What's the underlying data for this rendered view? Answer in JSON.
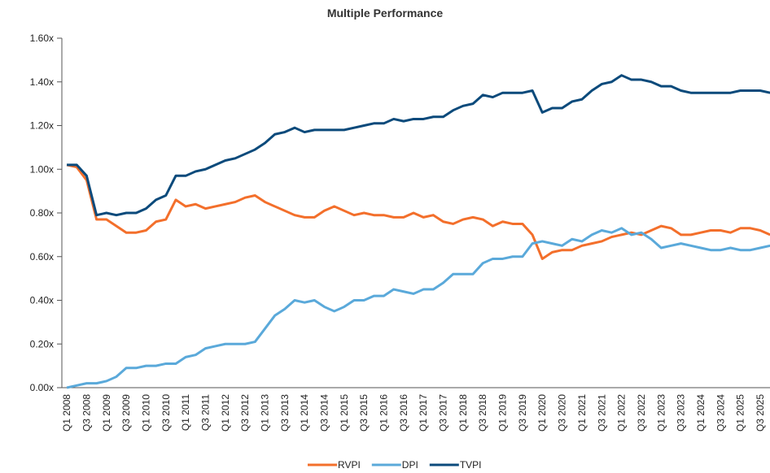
{
  "chart_data": {
    "type": "line",
    "title": "Multiple Performance",
    "categories": [
      "Q1 2008",
      null,
      "Q3 2008",
      null,
      "Q1 2009",
      null,
      "Q3 2009",
      null,
      "Q1 2010",
      null,
      "Q3 2010",
      null,
      "Q1 2011",
      null,
      "Q3 2011",
      null,
      "Q1 2012",
      null,
      "Q3 2012",
      null,
      "Q1 2013",
      null,
      "Q3 2013",
      null,
      "Q1 2014",
      null,
      "Q3 2014",
      null,
      "Q1 2015",
      null,
      "Q3 2015",
      null,
      "Q1 2016",
      null,
      "Q3 2016",
      null,
      "Q1 2017",
      null,
      "Q3 2017",
      null,
      "Q1 2018",
      null,
      "Q3 2018",
      null,
      "Q1 2019",
      null,
      "Q3 2019",
      null,
      "Q1 2020",
      null,
      "Q3 2020",
      null,
      "Q1 2021",
      null,
      "Q3 2021",
      null,
      "Q1 2022",
      null,
      "Q3 2022",
      null,
      "Q1 2023",
      null,
      "Q3 2023",
      null,
      "Q1 2024",
      null,
      "Q3 2024",
      null,
      "Q1 2025",
      null,
      "Q3 2025",
      null
    ],
    "series": [
      {
        "name": "RVPI",
        "color": "#f36f2b",
        "values": [
          1.02,
          1.01,
          0.95,
          0.77,
          0.77,
          0.74,
          0.71,
          0.71,
          0.72,
          0.76,
          0.77,
          0.86,
          0.83,
          0.84,
          0.82,
          0.83,
          0.84,
          0.85,
          0.87,
          0.88,
          0.85,
          0.83,
          0.81,
          0.79,
          0.78,
          0.78,
          0.81,
          0.83,
          0.81,
          0.79,
          0.8,
          0.79,
          0.79,
          0.78,
          0.78,
          0.8,
          0.78,
          0.79,
          0.76,
          0.75,
          0.77,
          0.78,
          0.77,
          0.74,
          0.76,
          0.75,
          0.75,
          0.7,
          0.59,
          0.62,
          0.63,
          0.63,
          0.65,
          0.66,
          0.67,
          0.69,
          0.7,
          0.71,
          0.7,
          0.72,
          0.74,
          0.73,
          0.7,
          0.7,
          0.71,
          0.72,
          0.72,
          0.71,
          0.73,
          0.73,
          0.72,
          0.7
        ]
      },
      {
        "name": "DPI",
        "color": "#5aa9da",
        "values": [
          0.0,
          0.01,
          0.02,
          0.02,
          0.03,
          0.05,
          0.09,
          0.09,
          0.1,
          0.1,
          0.11,
          0.11,
          0.14,
          0.15,
          0.18,
          0.19,
          0.2,
          0.2,
          0.2,
          0.21,
          0.27,
          0.33,
          0.36,
          0.4,
          0.39,
          0.4,
          0.37,
          0.35,
          0.37,
          0.4,
          0.4,
          0.42,
          0.42,
          0.45,
          0.44,
          0.43,
          0.45,
          0.45,
          0.48,
          0.52,
          0.52,
          0.52,
          0.57,
          0.59,
          0.59,
          0.6,
          0.6,
          0.66,
          0.67,
          0.66,
          0.65,
          0.68,
          0.67,
          0.7,
          0.72,
          0.71,
          0.73,
          0.7,
          0.71,
          0.68,
          0.64,
          0.65,
          0.66,
          0.65,
          0.64,
          0.63,
          0.63,
          0.64,
          0.63,
          0.63,
          0.64,
          0.65
        ]
      },
      {
        "name": "TVPI",
        "color": "#0b4a7b",
        "values": [
          1.02,
          1.02,
          0.97,
          0.79,
          0.8,
          0.79,
          0.8,
          0.8,
          0.82,
          0.86,
          0.88,
          0.97,
          0.97,
          0.99,
          1.0,
          1.02,
          1.04,
          1.05,
          1.07,
          1.09,
          1.12,
          1.16,
          1.17,
          1.19,
          1.17,
          1.18,
          1.18,
          1.18,
          1.18,
          1.19,
          1.2,
          1.21,
          1.21,
          1.23,
          1.22,
          1.23,
          1.23,
          1.24,
          1.24,
          1.27,
          1.29,
          1.3,
          1.34,
          1.33,
          1.35,
          1.35,
          1.35,
          1.36,
          1.26,
          1.28,
          1.28,
          1.31,
          1.32,
          1.36,
          1.39,
          1.4,
          1.43,
          1.41,
          1.41,
          1.4,
          1.38,
          1.38,
          1.36,
          1.35,
          1.35,
          1.35,
          1.35,
          1.35,
          1.36,
          1.36,
          1.36,
          1.35
        ]
      }
    ],
    "ylim": [
      0,
      1.6
    ],
    "yticks": [
      {
        "value": 0,
        "label": "0.00x"
      },
      {
        "value": 0.2,
        "label": "0.20x"
      },
      {
        "value": 0.4,
        "label": "0.40x"
      },
      {
        "value": 0.6,
        "label": "0.60x"
      },
      {
        "value": 0.8,
        "label": "0.80x"
      },
      {
        "value": 1.0,
        "label": "1.00x"
      },
      {
        "value": 1.2,
        "label": "1.20x"
      },
      {
        "value": 1.4,
        "label": "1.40x"
      },
      {
        "value": 1.6,
        "label": "1.60x"
      }
    ],
    "grid": false,
    "legend": "bottom"
  }
}
